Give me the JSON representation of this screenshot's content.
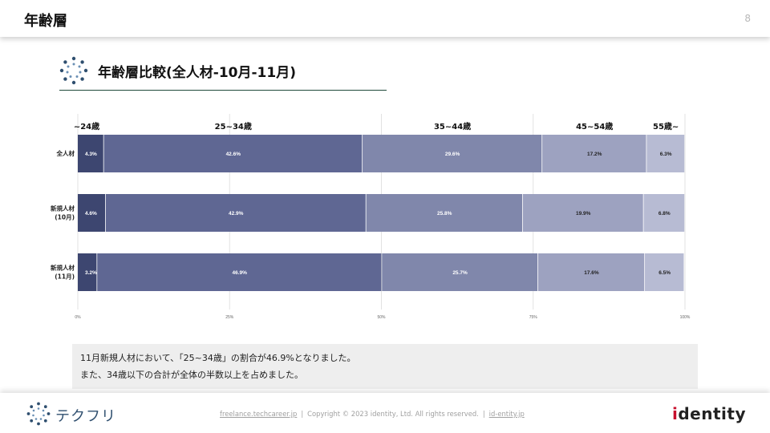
{
  "header": {
    "title": "年齢層",
    "page_number": "8"
  },
  "section": {
    "title": "年齢層比較(全人材-10月-11月)"
  },
  "colors": {
    "band1": "#3d4670",
    "band2": "#5f6793",
    "band3": "#8087ab",
    "band4": "#9da2c0",
    "band5": "#b7bbd3"
  },
  "chart_data": {
    "type": "bar",
    "orientation": "horizontal",
    "stacked": "100%",
    "categories": [
      "全人材",
      "新規人材\n(10月)",
      "新規人材\n(11月)"
    ],
    "category_lines": [
      [
        "全人材"
      ],
      [
        "新規人材",
        "(10月)"
      ],
      [
        "新規人材",
        "(11月)"
      ]
    ],
    "series": [
      {
        "name": "~24歳",
        "values": [
          4.3,
          4.6,
          3.2
        ],
        "labels": [
          "4.3%",
          "4.6%",
          "3.2%"
        ]
      },
      {
        "name": "25~34歳",
        "values": [
          42.6,
          42.9,
          46.9
        ],
        "labels": [
          "42.6%",
          "42.9%",
          "46.9%"
        ]
      },
      {
        "name": "35~44歳",
        "values": [
          29.6,
          25.8,
          25.7
        ],
        "labels": [
          "29.6%",
          "25.8%",
          "25.7%"
        ]
      },
      {
        "name": "45~54歳",
        "values": [
          17.2,
          19.9,
          17.6
        ],
        "labels": [
          "17.2%",
          "19.9%",
          "17.6%"
        ]
      },
      {
        "name": "55歳~",
        "values": [
          6.3,
          6.8,
          6.5
        ],
        "labels": [
          "6.3%",
          "6.8%",
          "6.5%"
        ]
      }
    ],
    "xlim": [
      0,
      100
    ],
    "xticks": [
      "0%",
      "25%",
      "50%",
      "75%",
      "100%"
    ],
    "grid": true,
    "legend": "top"
  },
  "note": {
    "line1": "11月新規人材において、「25~34歳」の割合が46.9%となりました。",
    "line2": "また、34歳以下の合計が全体の半数以上を占めました。"
  },
  "footer": {
    "logo_text": "テクフリ",
    "link1": "freelance.techcareer.jp",
    "copyright": "Copyright © 2023 identity, Ltd. All rights reserved.",
    "link2": "id-entity.jp",
    "brand_first": "i",
    "brand_rest": "dentity"
  }
}
